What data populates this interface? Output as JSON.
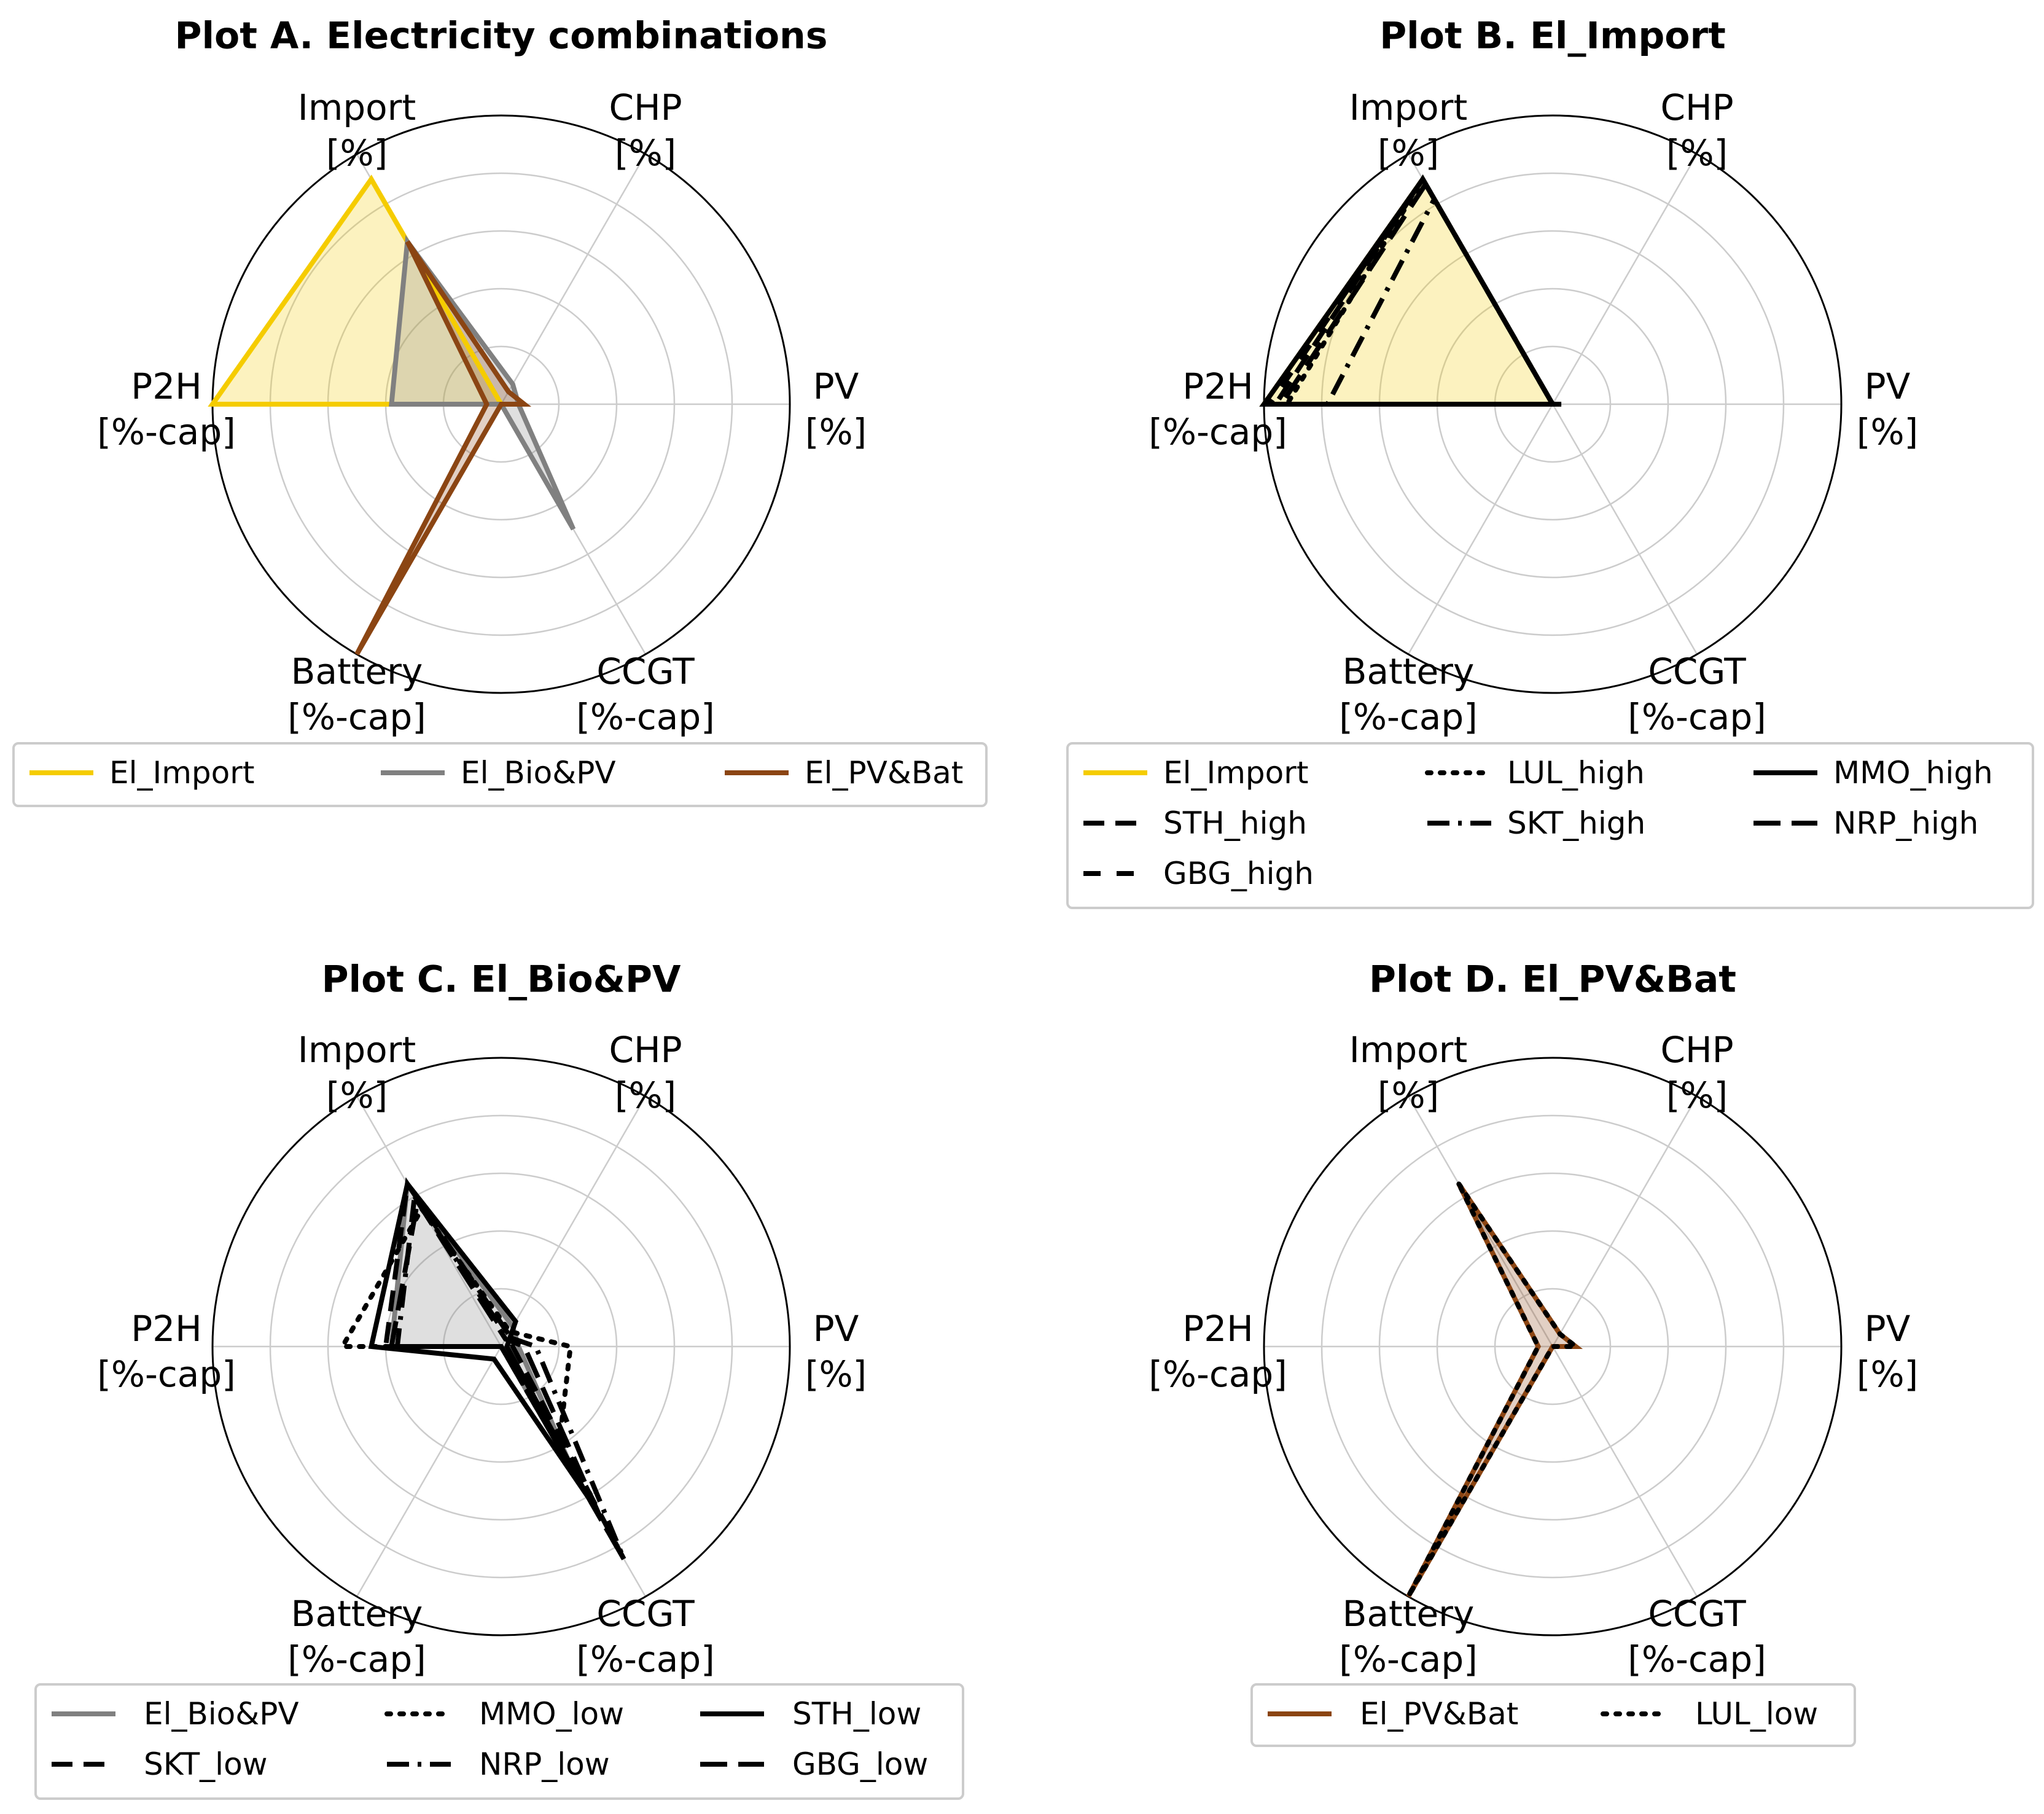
{
  "figure": {
    "style": {
      "El_Import": {
        "color": "#F5CC00",
        "fill": "#F5CC00",
        "dash": "solid"
      },
      "El_Bio&PV": {
        "color": "#808080",
        "fill": "#808080",
        "dash": "solid"
      },
      "El_PV&Bat": {
        "color": "#8B4513",
        "fill": "#8B4513",
        "dash": "solid"
      }
    }
  },
  "chart_data": [
    {
      "type": "radar",
      "title": "Plot A. Electricity combinations",
      "axes": [
        {
          "line1": "Import",
          "line2": "[%]"
        },
        {
          "line1": "CHP",
          "line2": "[%]"
        },
        {
          "line1": "PV",
          "line2": "[%]"
        },
        {
          "line1": "CCGT",
          "line2": "[%-cap]"
        },
        {
          "line1": "Battery",
          "line2": "[%-cap]"
        },
        {
          "line1": "P2H",
          "line2": "[%-cap]"
        }
      ],
      "rlim": [
        0,
        100
      ],
      "grid_levels": [
        20,
        40,
        60,
        80
      ],
      "legend_columns": 3,
      "series": [
        {
          "name": "El_Import",
          "values": [
            90,
            0,
            0,
            0,
            0,
            100
          ],
          "color": "#F5CC00",
          "dash": "solid",
          "fill": "#F5CC00"
        },
        {
          "name": "El_Bio&PV",
          "values": [
            65,
            8,
            6,
            50,
            0,
            38
          ],
          "color": "#808080",
          "dash": "solid",
          "fill": "#808080"
        },
        {
          "name": "El_PV&Bat",
          "values": [
            65,
            5,
            8,
            0,
            100,
            5
          ],
          "color": "#8B4513",
          "dash": "solid",
          "fill": "#8B4513"
        }
      ]
    },
    {
      "type": "radar",
      "title": "Plot B. El_Import",
      "axes": [
        {
          "line1": "Import",
          "line2": "[%]"
        },
        {
          "line1": "CHP",
          "line2": "[%]"
        },
        {
          "line1": "PV",
          "line2": "[%]"
        },
        {
          "line1": "CCGT",
          "line2": "[%-cap]"
        },
        {
          "line1": "Battery",
          "line2": "[%-cap]"
        },
        {
          "line1": "P2H",
          "line2": "[%-cap]"
        }
      ],
      "rlim": [
        0,
        100
      ],
      "grid_levels": [
        20,
        40,
        60,
        80
      ],
      "legend_columns": 3,
      "series": [
        {
          "name": "El_Import",
          "values": [
            90,
            0,
            0,
            0,
            0,
            100
          ],
          "color": "#F5CC00",
          "dash": "solid",
          "fill": "#F5CC00"
        },
        {
          "name": "LUL_high",
          "values": [
            90,
            0,
            0,
            0,
            0,
            92
          ],
          "color": "#000000",
          "dash": "dotted",
          "fill": null
        },
        {
          "name": "MMO_high",
          "values": [
            90,
            0,
            3,
            0,
            0,
            100
          ],
          "color": "#000000",
          "dash": "solid",
          "fill": null
        },
        {
          "name": "STH_high",
          "values": [
            90,
            0,
            0,
            0,
            0,
            96
          ],
          "color": "#000000",
          "dash": "dashed",
          "fill": null
        },
        {
          "name": "SKT_high",
          "values": [
            82,
            0,
            0,
            0,
            0,
            78
          ],
          "color": "#000000",
          "dash": "dashdot",
          "fill": null
        },
        {
          "name": "NRP_high",
          "values": [
            88,
            0,
            0,
            0,
            0,
            94
          ],
          "color": "#000000",
          "dash": "longdash",
          "fill": null
        },
        {
          "name": "GBG_high",
          "values": [
            90,
            0,
            0,
            0,
            0,
            98
          ],
          "color": "#000000",
          "dash": "loosedash",
          "fill": null
        }
      ]
    },
    {
      "type": "radar",
      "title": "Plot C. El_Bio&PV",
      "axes": [
        {
          "line1": "Import",
          "line2": "[%]"
        },
        {
          "line1": "CHP",
          "line2": "[%]"
        },
        {
          "line1": "PV",
          "line2": "[%]"
        },
        {
          "line1": "CCGT",
          "line2": "[%-cap]"
        },
        {
          "line1": "Battery",
          "line2": "[%-cap]"
        },
        {
          "line1": "P2H",
          "line2": "[%-cap]"
        }
      ],
      "rlim": [
        0,
        100
      ],
      "grid_levels": [
        20,
        40,
        60,
        80
      ],
      "legend_columns": 3,
      "series": [
        {
          "name": "El_Bio&PV",
          "values": [
            65,
            8,
            6,
            50,
            0,
            38
          ],
          "color": "#808080",
          "dash": "solid",
          "fill": "#808080"
        },
        {
          "name": "MMO_low",
          "values": [
            55,
            6,
            24,
            40,
            0,
            55
          ],
          "color": "#000000",
          "dash": "dotted",
          "fill": null
        },
        {
          "name": "STH_low",
          "values": [
            65,
            10,
            2,
            60,
            5,
            45
          ],
          "color": "#000000",
          "dash": "solid",
          "fill": null
        },
        {
          "name": "SKT_low",
          "values": [
            65,
            5,
            4,
            85,
            0,
            40
          ],
          "color": "#000000",
          "dash": "dashed",
          "fill": null
        },
        {
          "name": "NRP_low",
          "values": [
            60,
            4,
            12,
            85,
            0,
            36
          ],
          "color": "#000000",
          "dash": "dashdot",
          "fill": null
        },
        {
          "name": "GBG_low",
          "values": [
            58,
            3,
            8,
            70,
            0,
            38
          ],
          "color": "#000000",
          "dash": "longdash",
          "fill": null
        }
      ]
    },
    {
      "type": "radar",
      "title": "Plot D. El_PV&Bat",
      "axes": [
        {
          "line1": "Import",
          "line2": "[%]"
        },
        {
          "line1": "CHP",
          "line2": "[%]"
        },
        {
          "line1": "PV",
          "line2": "[%]"
        },
        {
          "line1": "CCGT",
          "line2": "[%-cap]"
        },
        {
          "line1": "Battery",
          "line2": "[%-cap]"
        },
        {
          "line1": "P2H",
          "line2": "[%-cap]"
        }
      ],
      "rlim": [
        0,
        100
      ],
      "grid_levels": [
        20,
        40,
        60,
        80
      ],
      "legend_columns": 2,
      "series": [
        {
          "name": "El_PV&Bat",
          "values": [
            65,
            5,
            8,
            0,
            100,
            5
          ],
          "color": "#8B4513",
          "dash": "solid",
          "fill": "#8B4513"
        },
        {
          "name": "LUL_low",
          "values": [
            65,
            5,
            8,
            0,
            100,
            5
          ],
          "color": "#000000",
          "dash": "dotted",
          "fill": null
        }
      ]
    }
  ]
}
